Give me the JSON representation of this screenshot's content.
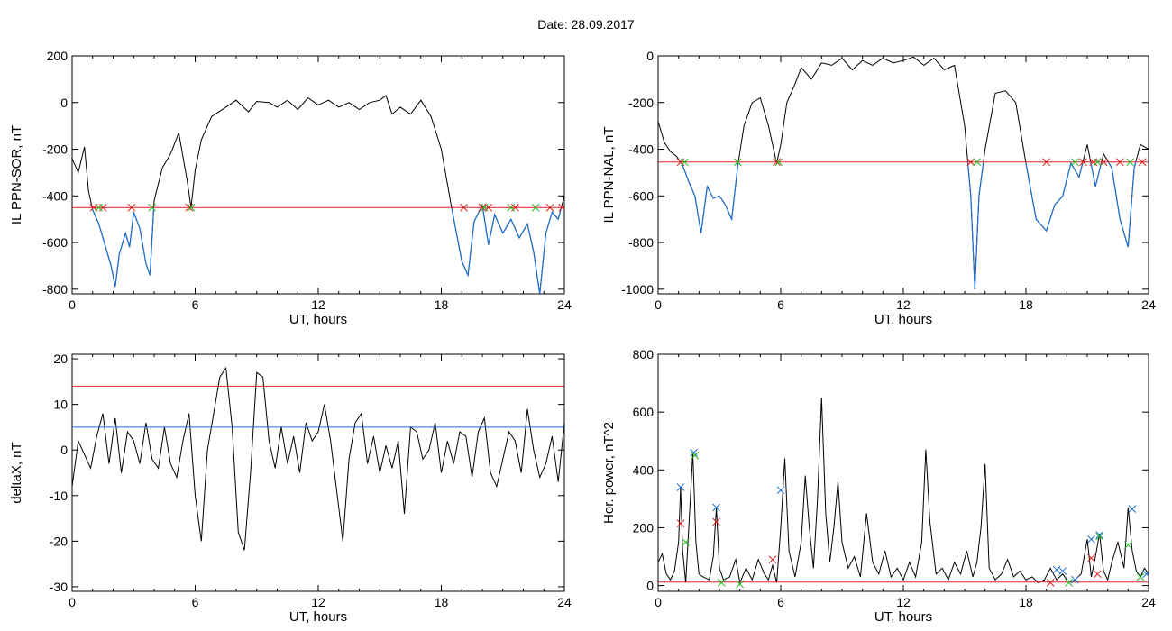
{
  "page": {
    "title": "Date:  28.09.2017"
  },
  "colors": {
    "trace": "#000000",
    "threshold_red": "#dd2222",
    "threshold_blue": "#1e6fd0",
    "marker_green": "#22bb22"
  },
  "chart_data": [
    {
      "id": "ppn-sor",
      "type": "line",
      "xlabel": "UT, hours",
      "ylabel": "IL PPN-SOR, nT",
      "xlim": [
        0,
        24
      ],
      "ylim": [
        -820,
        200
      ],
      "xticks": [
        0,
        6,
        12,
        18,
        24
      ],
      "yticks": [
        -800,
        -600,
        -400,
        -200,
        0,
        200
      ],
      "thresholds": [
        {
          "value": -450,
          "color": "red"
        }
      ],
      "series": [
        {
          "x": [
            0,
            0.3,
            0.6,
            0.8,
            1,
            1.3,
            1.6,
            1.9,
            2.1,
            2.3,
            2.6,
            2.8,
            3,
            3.3,
            3.6,
            3.8,
            4,
            4.4,
            4.8,
            5.2,
            5.6,
            5.8,
            6,
            6.3,
            6.8,
            7.5,
            8,
            8.6,
            9,
            9.6,
            10,
            10.5,
            11,
            11.5,
            12,
            12.5,
            13,
            13.5,
            14,
            14.5,
            15,
            15.3,
            15.6,
            16,
            16.5,
            17,
            17.5,
            18,
            18.5,
            19,
            19.3,
            19.6,
            20,
            20.3,
            20.6,
            21,
            21.4,
            21.8,
            22.2,
            22.5,
            22.8,
            23.1,
            23.4,
            23.7,
            24
          ],
          "y": [
            -240,
            -300,
            -190,
            -380,
            -460,
            -520,
            -610,
            -700,
            -790,
            -650,
            -560,
            -620,
            -470,
            -540,
            -690,
            -740,
            -420,
            -280,
            -220,
            -130,
            -330,
            -450,
            -290,
            -160,
            -60,
            -20,
            10,
            -40,
            5,
            0,
            -20,
            10,
            -30,
            20,
            -10,
            10,
            -20,
            0,
            -30,
            0,
            10,
            30,
            -50,
            -20,
            -50,
            10,
            -60,
            -200,
            -450,
            -680,
            -740,
            -510,
            -440,
            -610,
            -480,
            -560,
            -500,
            -580,
            -520,
            -640,
            -820,
            -560,
            -470,
            -500,
            -400
          ]
        }
      ],
      "markers_red": [
        {
          "x": 1.05,
          "y": -450
        },
        {
          "x": 1.5,
          "y": -450
        },
        {
          "x": 2.9,
          "y": -450
        },
        {
          "x": 5.7,
          "y": -450
        },
        {
          "x": 19.1,
          "y": -450
        },
        {
          "x": 20,
          "y": -450
        },
        {
          "x": 20.3,
          "y": -450
        },
        {
          "x": 21.6,
          "y": -450
        },
        {
          "x": 23.3,
          "y": -450
        },
        {
          "x": 23.9,
          "y": -450
        }
      ],
      "markers_green": [
        {
          "x": 1.3,
          "y": -450
        },
        {
          "x": 3.9,
          "y": -450
        },
        {
          "x": 5.8,
          "y": -450
        },
        {
          "x": 20.1,
          "y": -450
        },
        {
          "x": 21.4,
          "y": -450
        },
        {
          "x": 22.6,
          "y": -450
        }
      ]
    },
    {
      "id": "ppn-nal",
      "type": "line",
      "xlabel": "UT, hours",
      "ylabel": "IL PPN-NAL, nT",
      "xlim": [
        0,
        24
      ],
      "ylim": [
        -1020,
        0
      ],
      "xticks": [
        0,
        6,
        12,
        18,
        24
      ],
      "yticks": [
        -1000,
        -800,
        -600,
        -400,
        -200,
        0
      ],
      "thresholds": [
        {
          "value": -455,
          "color": "red"
        }
      ],
      "series": [
        {
          "x": [
            0,
            0.3,
            0.6,
            0.9,
            1.2,
            1.5,
            1.8,
            2.1,
            2.4,
            2.7,
            3,
            3.3,
            3.6,
            3.9,
            4.2,
            4.6,
            5,
            5.4,
            5.8,
            6,
            6.3,
            6.7,
            7,
            7.5,
            8,
            8.5,
            9,
            9.5,
            10,
            10.5,
            11,
            11.5,
            12,
            12.5,
            13,
            13.5,
            14,
            14.5,
            15,
            15.3,
            15.5,
            15.7,
            16,
            16.5,
            17,
            17.5,
            18,
            18.5,
            19,
            19.4,
            19.8,
            20.2,
            20.6,
            21,
            21.4,
            21.8,
            22.2,
            22.6,
            23,
            23.3,
            23.6,
            24
          ],
          "y": [
            -280,
            -370,
            -410,
            -430,
            -470,
            -540,
            -600,
            -760,
            -560,
            -610,
            -600,
            -640,
            -700,
            -470,
            -300,
            -200,
            -180,
            -300,
            -460,
            -380,
            -200,
            -120,
            -50,
            -100,
            -30,
            -40,
            -10,
            -60,
            -20,
            -40,
            -10,
            -30,
            -20,
            -5,
            -40,
            -10,
            -60,
            -40,
            -300,
            -600,
            -1000,
            -600,
            -400,
            -160,
            -150,
            -200,
            -460,
            -700,
            -750,
            -640,
            -600,
            -460,
            -520,
            -380,
            -560,
            -420,
            -480,
            -700,
            -820,
            -480,
            -380,
            -400
          ]
        }
      ],
      "markers_red": [
        {
          "x": 1.1,
          "y": -455
        },
        {
          "x": 5.8,
          "y": -455
        },
        {
          "x": 15.3,
          "y": -455
        },
        {
          "x": 19,
          "y": -455
        },
        {
          "x": 20.8,
          "y": -455
        },
        {
          "x": 21.3,
          "y": -455
        },
        {
          "x": 21.8,
          "y": -455
        },
        {
          "x": 22.6,
          "y": -455
        },
        {
          "x": 23.7,
          "y": -455
        }
      ],
      "markers_green": [
        {
          "x": 1.3,
          "y": -455
        },
        {
          "x": 3.9,
          "y": -455
        },
        {
          "x": 5.9,
          "y": -455
        },
        {
          "x": 15.6,
          "y": -455
        },
        {
          "x": 20.4,
          "y": -455
        },
        {
          "x": 21.5,
          "y": -455
        },
        {
          "x": 23.1,
          "y": -455
        }
      ]
    },
    {
      "id": "deltax",
      "type": "line",
      "xlabel": "UT, hours",
      "ylabel": "deltaX, nT",
      "xlim": [
        0,
        24
      ],
      "ylim": [
        -31,
        21
      ],
      "xticks": [
        0,
        6,
        12,
        18,
        24
      ],
      "yticks": [
        -30,
        -20,
        -10,
        0,
        10,
        20
      ],
      "thresholds": [
        {
          "value": 14,
          "color": "red"
        },
        {
          "value": 5,
          "color": "blue"
        }
      ],
      "series": [
        {
          "x": [
            0,
            0.3,
            0.6,
            0.9,
            1.2,
            1.5,
            1.8,
            2.1,
            2.4,
            2.7,
            3,
            3.3,
            3.6,
            3.9,
            4.2,
            4.5,
            4.8,
            5.1,
            5.4,
            5.7,
            6,
            6.3,
            6.6,
            6.9,
            7.2,
            7.5,
            7.8,
            8.1,
            8.4,
            8.7,
            9,
            9.3,
            9.6,
            9.9,
            10.2,
            10.5,
            10.8,
            11.1,
            11.4,
            11.7,
            12,
            12.3,
            12.6,
            12.9,
            13.2,
            13.5,
            13.8,
            14.1,
            14.4,
            14.7,
            15,
            15.3,
            15.6,
            15.9,
            16.2,
            16.5,
            16.8,
            17.1,
            17.4,
            17.7,
            18,
            18.3,
            18.6,
            18.9,
            19.2,
            19.5,
            19.8,
            20.1,
            20.4,
            20.7,
            21,
            21.3,
            21.6,
            21.9,
            22.2,
            22.5,
            22.8,
            23.1,
            23.4,
            23.7,
            24
          ],
          "y": [
            -8,
            2,
            -1,
            -4,
            3,
            8,
            -3,
            7,
            -5,
            4,
            2,
            -3,
            6,
            -2,
            -4,
            5,
            -3,
            -6,
            2,
            8,
            -10,
            -20,
            0,
            8,
            16,
            18,
            5,
            -18,
            -22,
            -5,
            17,
            16,
            2,
            -4,
            5,
            -3,
            3,
            -5,
            6,
            2,
            4,
            10,
            2,
            -9,
            -20,
            -2,
            6,
            8,
            -3,
            3,
            -5,
            1,
            -4,
            2,
            -14,
            5,
            4,
            -2,
            0,
            6,
            -5,
            2,
            -3,
            4,
            3,
            -6,
            4,
            7,
            -5,
            -8,
            -2,
            4,
            2,
            -5,
            9,
            0,
            -6,
            -3,
            3,
            -7,
            6
          ]
        }
      ]
    },
    {
      "id": "hor-power",
      "type": "line",
      "xlabel": "UT, hours",
      "ylabel": "Hor. power, nT^2",
      "xlim": [
        0,
        24
      ],
      "ylim": [
        -20,
        800
      ],
      "xticks": [
        0,
        6,
        12,
        18,
        24
      ],
      "yticks": [
        0,
        200,
        400,
        600,
        800
      ],
      "thresholds": [
        {
          "value": 12,
          "color": "red"
        }
      ],
      "series": [
        {
          "x": [
            0,
            0.2,
            0.4,
            0.6,
            0.8,
            1,
            1.1,
            1.2,
            1.35,
            1.5,
            1.7,
            1.85,
            2,
            2.2,
            2.5,
            2.7,
            2.85,
            3,
            3.2,
            3.5,
            3.8,
            4,
            4.3,
            4.6,
            4.9,
            5.2,
            5.4,
            5.6,
            5.8,
            6,
            6.2,
            6.4,
            6.7,
            7,
            7.2,
            7.4,
            7.6,
            7.8,
            8,
            8.2,
            8.4,
            8.6,
            8.8,
            9,
            9.3,
            9.6,
            9.9,
            10.2,
            10.5,
            10.8,
            11.1,
            11.4,
            11.7,
            12,
            12.3,
            12.6,
            12.9,
            13.1,
            13.3,
            13.6,
            13.9,
            14.2,
            14.5,
            14.8,
            15.1,
            15.4,
            15.6,
            15.8,
            16,
            16.2,
            16.5,
            16.8,
            17.1,
            17.4,
            17.7,
            18,
            18.3,
            18.6,
            18.9,
            19.2,
            19.5,
            19.8,
            20.1,
            20.4,
            20.7,
            21,
            21.2,
            21.4,
            21.6,
            21.8,
            22,
            22.2,
            22.5,
            22.8,
            23,
            23.2,
            23.4,
            23.6,
            23.8,
            24
          ],
          "y": [
            80,
            110,
            40,
            20,
            50,
            150,
            340,
            120,
            10,
            200,
            460,
            150,
            40,
            30,
            20,
            100,
            270,
            60,
            20,
            30,
            90,
            10,
            60,
            20,
            90,
            40,
            20,
            70,
            10,
            200,
            440,
            120,
            30,
            150,
            380,
            200,
            60,
            300,
            650,
            250,
            80,
            200,
            360,
            150,
            60,
            100,
            30,
            250,
            80,
            40,
            120,
            30,
            60,
            20,
            80,
            30,
            150,
            470,
            220,
            40,
            60,
            20,
            80,
            40,
            120,
            30,
            80,
            200,
            420,
            60,
            20,
            40,
            90,
            30,
            50,
            20,
            30,
            10,
            20,
            60,
            20,
            40,
            10,
            20,
            40,
            160,
            30,
            100,
            180,
            50,
            20,
            80,
            150,
            60,
            270,
            120,
            50,
            30,
            60,
            40
          ]
        }
      ],
      "markers_blue": [
        {
          "x": 1.1,
          "y": 340
        },
        {
          "x": 1.75,
          "y": 460
        },
        {
          "x": 2.85,
          "y": 270
        },
        {
          "x": 6,
          "y": 330
        },
        {
          "x": 19.5,
          "y": 55
        },
        {
          "x": 19.8,
          "y": 50
        },
        {
          "x": 20.4,
          "y": 20
        },
        {
          "x": 21.2,
          "y": 160
        },
        {
          "x": 21.6,
          "y": 175
        },
        {
          "x": 23.2,
          "y": 265
        },
        {
          "x": 23.9,
          "y": 40
        }
      ],
      "markers_red": [
        {
          "x": 1.1,
          "y": 215
        },
        {
          "x": 2.85,
          "y": 220
        },
        {
          "x": 5.6,
          "y": 90
        },
        {
          "x": 19.2,
          "y": 10
        },
        {
          "x": 21.2,
          "y": 95
        },
        {
          "x": 21.5,
          "y": 40
        }
      ],
      "markers_green": [
        {
          "x": 1.35,
          "y": 150
        },
        {
          "x": 1.8,
          "y": 450
        },
        {
          "x": 3.1,
          "y": 10
        },
        {
          "x": 4,
          "y": 5
        },
        {
          "x": 20.1,
          "y": 10
        },
        {
          "x": 21.6,
          "y": 170
        },
        {
          "x": 23,
          "y": 140
        },
        {
          "x": 23.6,
          "y": 30
        }
      ]
    }
  ]
}
